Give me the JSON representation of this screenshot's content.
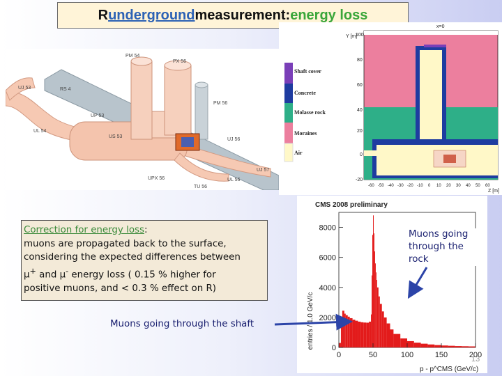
{
  "title": {
    "prefix": "R ",
    "underlined": "underground",
    "middle": " measurement: ",
    "highlight": "energy loss"
  },
  "cavern_labels": {
    "pm54": "PM 54",
    "px56": "PX 56",
    "uj53": "UJ 53",
    "rs4": "RS 4",
    "up53": "UP 53",
    "pm56": "PM 56",
    "ul54": "UL 54",
    "us53": "US 53",
    "uj56": "UJ 56",
    "uj57": "UJ 57",
    "upx56": "UPX 56",
    "tu56": "TU 56",
    "ul56": "UL 56"
  },
  "shaft_model": {
    "x_header": "x=0",
    "y_axis_label": "Y [m]",
    "x_axis_label": "Z [m]",
    "y_ticks": [
      "100",
      "80",
      "60",
      "40",
      "20",
      "0",
      "-20"
    ],
    "x_ticks": [
      "-60",
      "-50",
      "-40",
      "-30",
      "-20",
      "-10",
      "0",
      "10",
      "20",
      "30",
      "40",
      "50",
      "60"
    ],
    "legend": [
      {
        "label": "Shaft cover",
        "color": "#7a3fb8"
      },
      {
        "label": "Concrete",
        "color": "#1e3ca0"
      },
      {
        "label": "Molasse rock",
        "color": "#2eaf88"
      },
      {
        "label": "Moraines",
        "color": "#ec7f9e"
      },
      {
        "label": "Air",
        "color": "#fff8c8"
      }
    ]
  },
  "chart_data": {
    "type": "histogram",
    "title": "CMS 2008 preliminary",
    "xlabel": "p - p^CMS (GeV/c)",
    "ylabel": "entries / 1.0 GeV/c",
    "xlim": [
      0,
      200
    ],
    "ylim": [
      0,
      9000
    ],
    "x_ticks": [
      0,
      50,
      100,
      150,
      200
    ],
    "y_ticks": [
      0,
      2000,
      4000,
      6000,
      8000
    ],
    "bin_width": 1.0,
    "x": [
      0,
      3,
      5,
      8,
      10,
      13,
      16,
      20,
      24,
      28,
      32,
      36,
      40,
      44,
      47,
      48,
      49,
      50,
      51,
      52,
      53,
      54,
      55,
      56,
      58,
      60,
      63,
      66,
      70,
      75,
      80,
      90,
      100,
      110,
      120,
      130,
      140,
      150,
      160,
      170,
      180,
      190,
      200
    ],
    "y": [
      300,
      2000,
      2450,
      2250,
      2150,
      2050,
      1950,
      1850,
      1780,
      1720,
      1680,
      1660,
      1650,
      1720,
      2200,
      4800,
      7500,
      8800,
      7600,
      6400,
      5600,
      5000,
      4500,
      4000,
      3400,
      2900,
      2400,
      2000,
      1600,
      1200,
      900,
      600,
      420,
      320,
      250,
      200,
      160,
      130,
      110,
      90,
      80,
      70,
      60
    ],
    "color": "#e31b1b"
  },
  "correction_box": {
    "heading": "Correction for energy loss",
    "heading_suffix": ":",
    "line1": "muons are propagated back to the surface,",
    "line2": "considering the expected differences between",
    "mu": "μ",
    "plus": "+",
    "and": " and ",
    "minus": "-",
    "line3_rest": " energy loss ( 0.15 % higher for",
    "line4": "positive muons, and < 0.3 % effect on R)"
  },
  "callouts": {
    "rock": "Muons going through the rock",
    "shaft": "Muons going through the shaft"
  },
  "page_number": "13"
}
